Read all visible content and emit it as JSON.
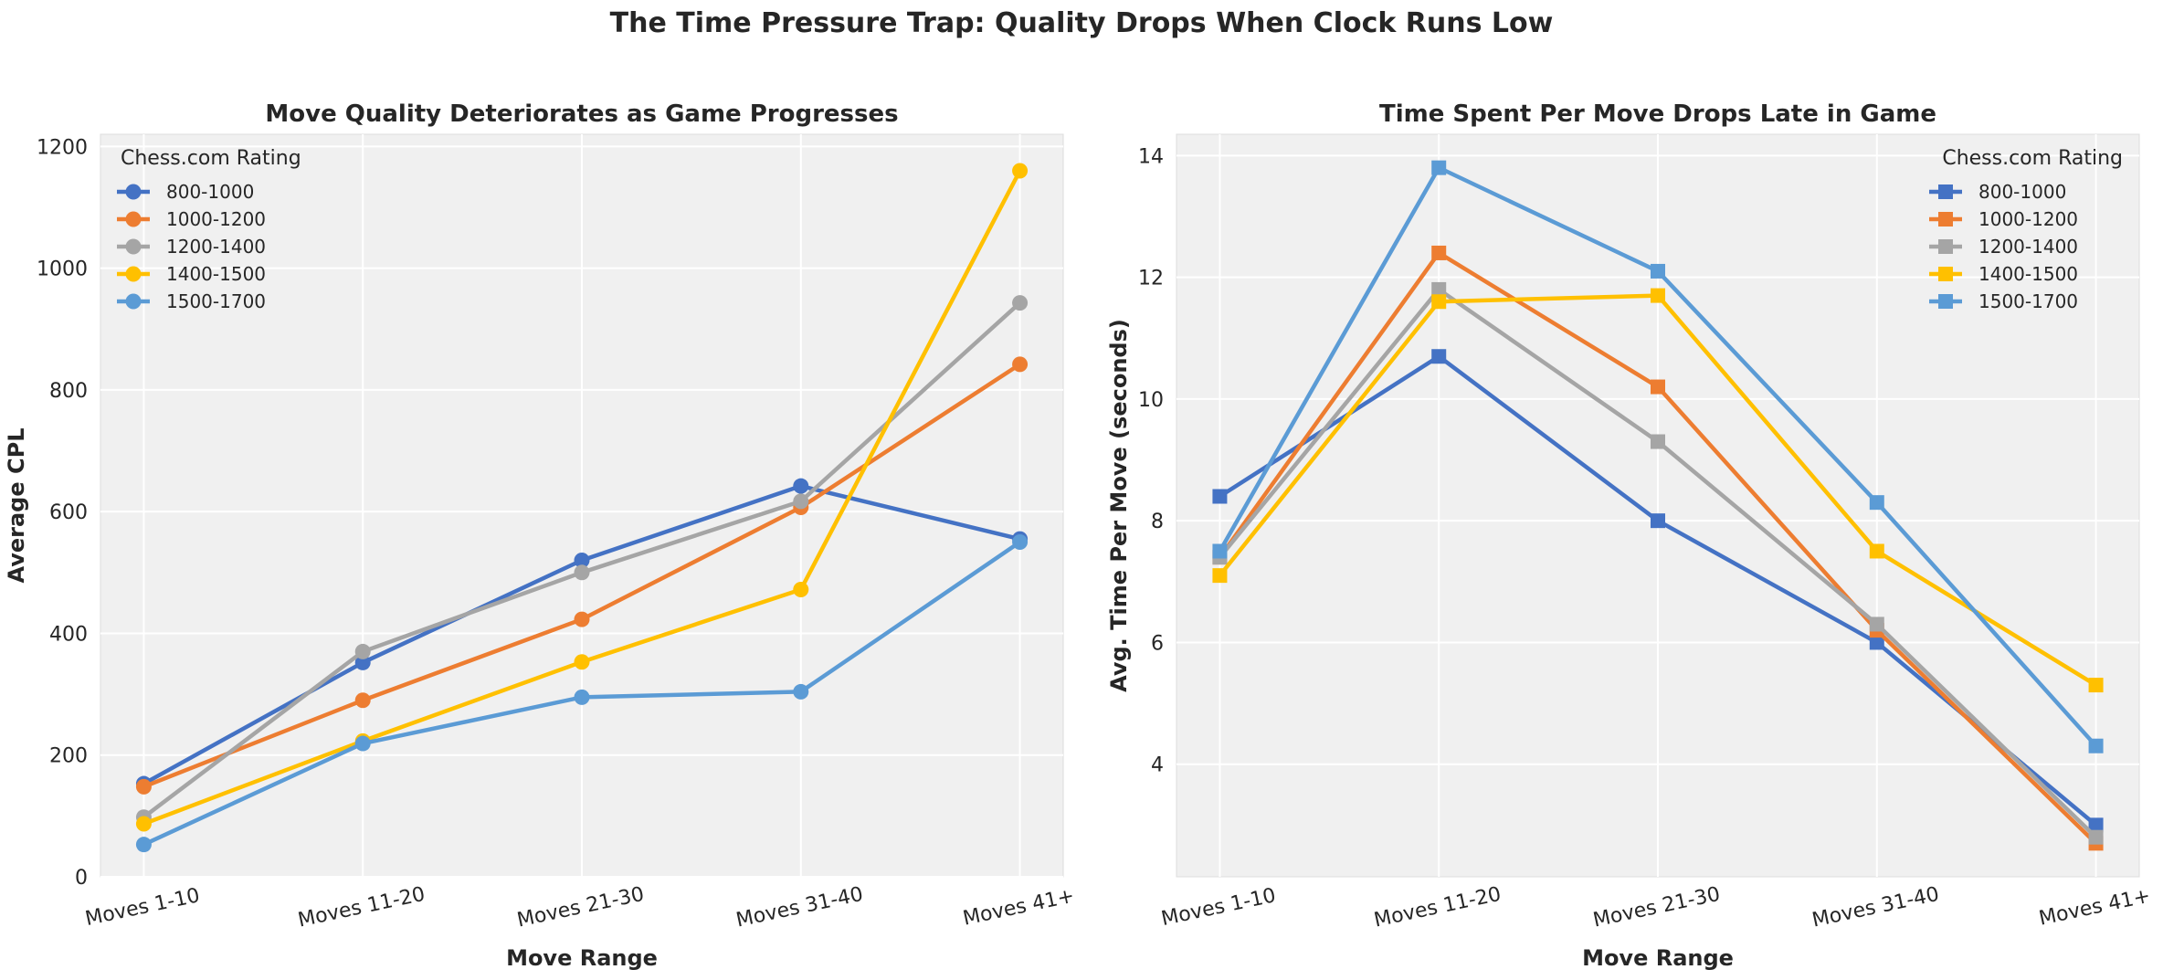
{
  "suptitle": "The Time Pressure Trap: Quality Drops When Clock Runs Low",
  "colors": {
    "800-1000": "#4472c4",
    "1000-1200": "#ed7d31",
    "1200-1400": "#a5a5a5",
    "1400-1500": "#ffc000",
    "1500-1700": "#5b9bd5",
    "plot_bg": "#f0f0f0",
    "grid": "#ffffff"
  },
  "chart_data": [
    {
      "type": "line",
      "title": "Move Quality Deteriorates as Game Progresses",
      "xlabel": "Move Range",
      "ylabel": "Average CPL",
      "categories": [
        "Moves 1-10",
        "Moves 11-20",
        "Moves 21-30",
        "Moves 31-40",
        "Moves 41+"
      ],
      "ylim": [
        0,
        1220
      ],
      "yticks": [
        0,
        200,
        400,
        600,
        800,
        1000,
        1200
      ],
      "marker": "circle",
      "grid": true,
      "legend_title": "Chess.com Rating",
      "legend_position": "top-left",
      "series": [
        {
          "name": "800-1000",
          "values": [
            153,
            352,
            520,
            642,
            555
          ]
        },
        {
          "name": "1000-1200",
          "values": [
            148,
            290,
            423,
            607,
            842
          ]
        },
        {
          "name": "1200-1400",
          "values": [
            98,
            370,
            500,
            617,
            943
          ]
        },
        {
          "name": "1400-1500",
          "values": [
            87,
            223,
            353,
            472,
            1160
          ]
        },
        {
          "name": "1500-1700",
          "values": [
            53,
            219,
            295,
            304,
            550
          ]
        }
      ]
    },
    {
      "type": "line",
      "title": "Time Spent Per Move Drops Late in Game",
      "xlabel": "Move Range",
      "ylabel": "Avg. Time Per Move (seconds)",
      "categories": [
        "Moves 1-10",
        "Moves 11-20",
        "Moves 21-30",
        "Moves 31-40",
        "Moves 41+"
      ],
      "ylim": [
        2.15,
        14.35
      ],
      "yticks": [
        4,
        6,
        8,
        10,
        12,
        14
      ],
      "marker": "square",
      "grid": true,
      "legend_title": "Chess.com Rating",
      "legend_position": "top-right",
      "series": [
        {
          "name": "800-1000",
          "values": [
            8.4,
            10.7,
            8.0,
            6.0,
            3.0
          ]
        },
        {
          "name": "1000-1200",
          "values": [
            7.4,
            12.4,
            10.2,
            6.2,
            2.7
          ]
        },
        {
          "name": "1200-1400",
          "values": [
            7.4,
            11.8,
            9.3,
            6.3,
            2.8
          ]
        },
        {
          "name": "1400-1500",
          "values": [
            7.1,
            11.6,
            11.7,
            7.5,
            5.3
          ]
        },
        {
          "name": "1500-1700",
          "values": [
            7.5,
            13.8,
            12.1,
            8.3,
            4.3
          ]
        }
      ]
    }
  ]
}
